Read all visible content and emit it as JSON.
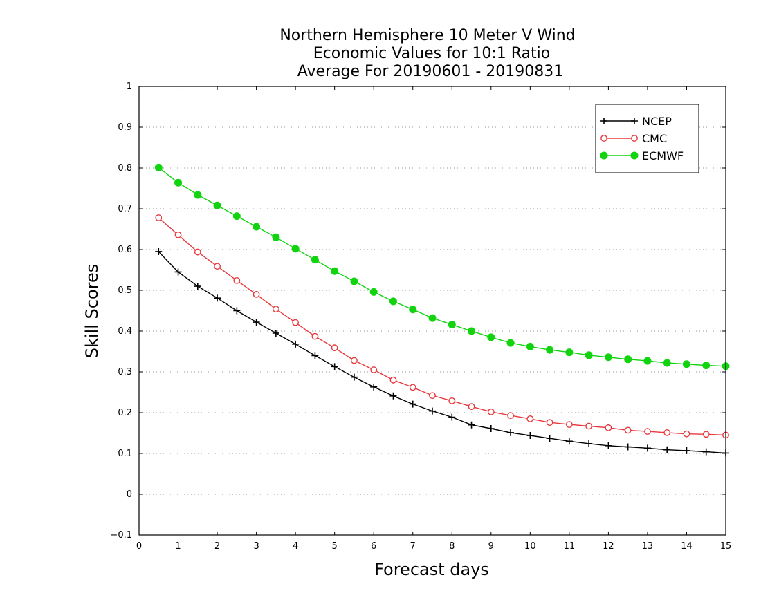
{
  "chart_data": {
    "type": "line",
    "title_lines": [
      "Northern Hemisphere 10 Meter V Wind",
      "Economic Values for 10:1 Ratio",
      "Average For 20190601 - 20190831"
    ],
    "xlabel": "Forecast days",
    "ylabel": "Skill Scores",
    "xlim": [
      0,
      15
    ],
    "ylim": [
      -0.1,
      1
    ],
    "x_ticks": [
      0,
      1,
      2,
      3,
      4,
      5,
      6,
      7,
      8,
      9,
      10,
      11,
      12,
      13,
      14,
      15
    ],
    "y_ticks": [
      -0.1,
      0,
      0.1,
      0.2,
      0.3,
      0.4,
      0.5,
      0.6,
      0.7,
      0.8,
      0.9,
      1
    ],
    "x_tick_labels": [
      "0",
      "1",
      "2",
      "3",
      "4",
      "5",
      "6",
      "7",
      "8",
      "9",
      "10",
      "11",
      "12",
      "13",
      "14",
      "15"
    ],
    "y_tick_labels": [
      "−0.1",
      "0",
      "0.1",
      "0.2",
      "0.3",
      "0.4",
      "0.5",
      "0.6",
      "0.7",
      "0.8",
      "0.9",
      "1"
    ],
    "grid": "horizontal dotted",
    "legend_position": "top-right",
    "x": [
      0.5,
      1,
      1.5,
      2,
      2.5,
      3,
      3.5,
      4,
      4.5,
      5,
      5.5,
      6,
      6.5,
      7,
      7.5,
      8,
      8.5,
      9,
      9.5,
      10,
      10.5,
      11,
      11.5,
      12,
      12.5,
      13,
      13.5,
      14,
      14.5,
      15
    ],
    "series": [
      {
        "name": "NCEP",
        "color": "#000000",
        "marker": "plus",
        "values": [
          0.595,
          0.545,
          0.51,
          0.481,
          0.45,
          0.422,
          0.395,
          0.368,
          0.34,
          0.313,
          0.287,
          0.263,
          0.241,
          0.221,
          0.204,
          0.189,
          0.17,
          0.161,
          0.151,
          0.144,
          0.137,
          0.13,
          0.124,
          0.119,
          0.116,
          0.113,
          0.109,
          0.107,
          0.104,
          0.101
        ]
      },
      {
        "name": "CMC",
        "color": "#e8383c",
        "marker": "open-circle",
        "values": [
          0.678,
          0.636,
          0.594,
          0.559,
          0.524,
          0.49,
          0.454,
          0.421,
          0.387,
          0.359,
          0.328,
          0.305,
          0.28,
          0.262,
          0.242,
          0.229,
          0.215,
          0.202,
          0.193,
          0.185,
          0.176,
          0.171,
          0.167,
          0.163,
          0.157,
          0.154,
          0.151,
          0.148,
          0.147,
          0.145
        ]
      },
      {
        "name": "ECMWF",
        "color": "#11d40f",
        "marker": "filled-circle",
        "values": [
          0.801,
          0.764,
          0.734,
          0.708,
          0.682,
          0.656,
          0.63,
          0.602,
          0.575,
          0.547,
          0.522,
          0.496,
          0.473,
          0.453,
          0.432,
          0.416,
          0.4,
          0.385,
          0.371,
          0.362,
          0.354,
          0.348,
          0.341,
          0.336,
          0.331,
          0.327,
          0.322,
          0.319,
          0.316,
          0.314
        ]
      }
    ]
  }
}
